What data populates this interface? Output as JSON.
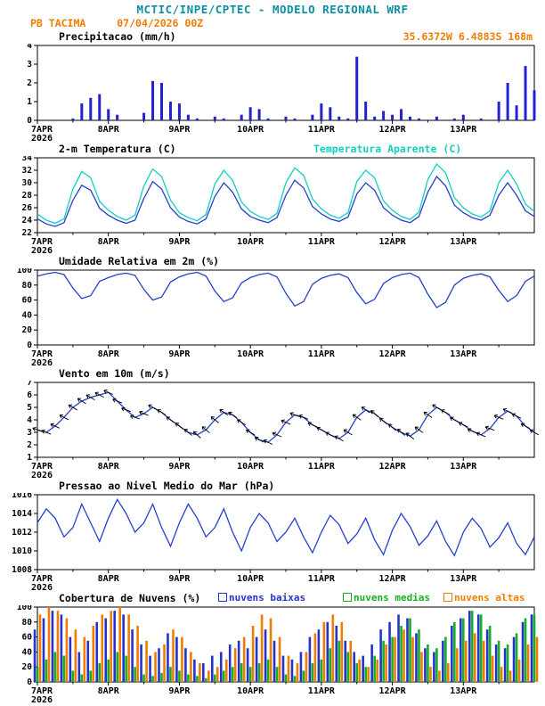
{
  "colors": {
    "header": "#0d8fa3",
    "accent": "#f07d00",
    "axis": "#000000"
  },
  "header": {
    "line1": "MCTIC/INPE/CPTEC - MODELO REGIONAL WRF",
    "station": "PB TACIMA",
    "run": "07/04/2026 00Z",
    "coords": "35.6372W 6.4883S 168m"
  },
  "x_axis": {
    "tick_labels": [
      "7APR",
      "8APR",
      "9APR",
      "10APR",
      "11APR",
      "12APR",
      "13APR"
    ],
    "year": "2026",
    "hours_total": 168,
    "step_hours": 3
  },
  "chart_data": [
    {
      "id": "precipitation",
      "type": "bar",
      "title": "Precipitacao (mm/h)",
      "ylim": [
        0,
        4
      ],
      "yticks": [
        0,
        1,
        2,
        3,
        4
      ],
      "series": [
        {
          "name": "precipitacao",
          "color": "#2222d0",
          "values": [
            0,
            0,
            0,
            0,
            0.1,
            0.9,
            1.2,
            1.4,
            0.6,
            0.3,
            0,
            0,
            0.4,
            2.1,
            2.0,
            1.0,
            0.9,
            0.3,
            0.1,
            0,
            0.2,
            0.1,
            0,
            0.3,
            0.7,
            0.6,
            0.1,
            0,
            0.2,
            0.1,
            0,
            0.3,
            0.9,
            0.7,
            0.2,
            0.1,
            3.4,
            1.0,
            0.2,
            0.5,
            0.3,
            0.6,
            0.2,
            0.1,
            0,
            0.2,
            0,
            0.1,
            0.3,
            0,
            0.1,
            0,
            1.0,
            2.0,
            0.8,
            2.9,
            1.6
          ]
        }
      ]
    },
    {
      "id": "temperature",
      "type": "line",
      "title": "2-m Temperatura (C)",
      "title2": "Temperatura Aparente (C)",
      "ylim": [
        22,
        34
      ],
      "yticks": [
        22,
        24,
        26,
        28,
        30,
        32,
        34
      ],
      "series": [
        {
          "name": "2-m Temperatura",
          "color": "#2440cc",
          "values": [
            24.2,
            23.4,
            23.0,
            23.6,
            27.2,
            29.6,
            28.8,
            25.9,
            24.8,
            24.0,
            23.5,
            24.0,
            27.5,
            30.2,
            29.0,
            26.0,
            24.5,
            23.8,
            23.4,
            24.2,
            27.8,
            30.0,
            28.5,
            25.8,
            24.6,
            24.0,
            23.6,
            24.4,
            28.0,
            30.4,
            29.2,
            26.2,
            25.0,
            24.2,
            23.8,
            24.5,
            28.2,
            30.0,
            28.8,
            26.0,
            24.8,
            24.0,
            23.6,
            24.6,
            28.5,
            31.0,
            29.5,
            26.4,
            25.2,
            24.4,
            24.0,
            24.8,
            28.0,
            30.0,
            28.0,
            25.5,
            24.6
          ]
        },
        {
          "name": "Temperatura Aparente",
          "color": "#12cfbf",
          "values": [
            25.0,
            24.0,
            23.5,
            24.2,
            29.0,
            31.8,
            30.8,
            27.0,
            25.6,
            24.6,
            24.0,
            24.8,
            29.5,
            32.2,
            31.0,
            27.2,
            25.2,
            24.4,
            23.9,
            24.9,
            29.8,
            32.0,
            30.4,
            26.9,
            25.4,
            24.6,
            24.1,
            25.1,
            30.0,
            32.4,
            31.2,
            27.4,
            25.8,
            24.8,
            24.3,
            25.2,
            30.2,
            32.0,
            30.8,
            27.1,
            25.6,
            24.6,
            24.1,
            25.3,
            30.5,
            33.0,
            31.6,
            27.6,
            26.0,
            25.0,
            24.5,
            25.5,
            30.0,
            32.0,
            29.8,
            26.6,
            25.4
          ]
        }
      ]
    },
    {
      "id": "humidity",
      "type": "line",
      "title": "Umidade Relativa em 2m (%)",
      "ylim": [
        0,
        100
      ],
      "yticks": [
        0,
        20,
        40,
        60,
        80,
        100
      ],
      "series": [
        {
          "name": "umidade relativa",
          "color": "#2440cc",
          "values": [
            92,
            95,
            97,
            94,
            76,
            62,
            66,
            85,
            90,
            94,
            96,
            93,
            74,
            60,
            64,
            84,
            91,
            95,
            97,
            92,
            72,
            58,
            63,
            83,
            90,
            94,
            96,
            91,
            69,
            52,
            58,
            81,
            89,
            93,
            95,
            90,
            70,
            55,
            61,
            82,
            90,
            94,
            96,
            90,
            68,
            50,
            57,
            80,
            89,
            93,
            95,
            91,
            73,
            58,
            66,
            85,
            92
          ]
        }
      ]
    },
    {
      "id": "wind",
      "type": "line",
      "title": "Vento em 10m (m/s)",
      "ylim": [
        1,
        7
      ],
      "yticks": [
        1,
        2,
        3,
        4,
        5,
        6,
        7
      ],
      "series": [
        {
          "name": "vento 10m",
          "color": "#2440cc",
          "values": [
            3.2,
            3.0,
            3.5,
            4.2,
            5.0,
            5.5,
            5.8,
            6.0,
            6.2,
            5.5,
            4.8,
            4.2,
            4.5,
            5.0,
            4.6,
            4.0,
            3.5,
            3.0,
            2.8,
            3.2,
            4.0,
            4.6,
            4.4,
            3.8,
            3.0,
            2.4,
            2.2,
            2.8,
            3.8,
            4.4,
            4.2,
            3.6,
            3.2,
            2.8,
            2.5,
            3.0,
            4.2,
            4.8,
            4.5,
            3.9,
            3.4,
            3.0,
            2.7,
            3.2,
            4.4,
            5.0,
            4.6,
            4.0,
            3.6,
            3.1,
            2.8,
            3.3,
            4.2,
            4.7,
            4.3,
            3.5,
            3.0
          ]
        }
      ],
      "barbs": {
        "color": "#000000",
        "dir_deg": [
          110,
          112,
          115,
          118,
          120,
          122,
          120,
          118,
          115,
          112,
          110,
          108,
          112,
          118,
          122,
          125,
          128,
          130,
          132,
          130,
          128,
          126,
          124,
          122,
          120,
          118,
          116,
          114,
          112,
          110,
          112,
          114,
          116,
          118,
          120,
          122,
          124,
          126,
          128,
          130,
          132,
          130,
          128,
          126,
          124,
          122,
          120,
          118,
          116,
          114,
          112,
          110,
          112,
          114,
          116,
          118,
          120
        ]
      }
    },
    {
      "id": "pressure",
      "type": "line",
      "title": "Pressao ao Nivel Medio do Mar (hPa)",
      "ylim": [
        1008,
        1016
      ],
      "yticks": [
        1008,
        1010,
        1012,
        1014,
        1016
      ],
      "series": [
        {
          "name": "pressao nivel do mar",
          "color": "#2440cc",
          "values": [
            1013.0,
            1014.5,
            1013.5,
            1011.5,
            1012.5,
            1015.0,
            1013.0,
            1011.0,
            1013.5,
            1015.5,
            1014.0,
            1012.0,
            1013.0,
            1015.0,
            1012.5,
            1010.5,
            1013.0,
            1015.0,
            1013.5,
            1011.5,
            1012.5,
            1014.5,
            1012.0,
            1010.0,
            1012.5,
            1014.0,
            1013.0,
            1011.0,
            1012.0,
            1013.5,
            1011.5,
            1009.8,
            1012.0,
            1013.8,
            1012.8,
            1010.8,
            1011.8,
            1013.5,
            1011.2,
            1009.6,
            1012.2,
            1014.0,
            1012.6,
            1010.6,
            1011.6,
            1013.2,
            1011.0,
            1009.5,
            1012.0,
            1013.5,
            1012.4,
            1010.4,
            1011.4,
            1013.0,
            1010.8,
            1009.6,
            1011.5
          ]
        }
      ]
    },
    {
      "id": "clouds",
      "type": "bar-group",
      "title": "Cobertura de Nuvens (%)",
      "ylim": [
        0,
        100
      ],
      "yticks": [
        0,
        20,
        40,
        60,
        80,
        100
      ],
      "series": [
        {
          "name": "nuvens baixas",
          "color": "#2433cc",
          "values": [
            70,
            85,
            95,
            90,
            60,
            40,
            55,
            80,
            85,
            95,
            90,
            70,
            50,
            35,
            45,
            65,
            60,
            45,
            30,
            25,
            35,
            40,
            50,
            55,
            45,
            60,
            70,
            55,
            35,
            30,
            40,
            60,
            70,
            80,
            75,
            55,
            40,
            35,
            50,
            70,
            80,
            90,
            85,
            65,
            45,
            40,
            55,
            75,
            85,
            95,
            90,
            70,
            50,
            45,
            60,
            80,
            90
          ]
        },
        {
          "name": "nuvens medias",
          "color": "#16b020",
          "values": [
            20,
            30,
            40,
            35,
            15,
            10,
            15,
            25,
            30,
            40,
            35,
            20,
            10,
            8,
            12,
            20,
            15,
            10,
            8,
            5,
            10,
            15,
            20,
            25,
            20,
            25,
            30,
            20,
            10,
            8,
            15,
            25,
            30,
            45,
            55,
            40,
            25,
            20,
            35,
            55,
            60,
            75,
            85,
            70,
            50,
            45,
            60,
            80,
            85,
            95,
            90,
            75,
            55,
            50,
            65,
            85,
            90
          ]
        },
        {
          "name": "nuvens altas",
          "color": "#f07d00",
          "values": [
            90,
            100,
            95,
            85,
            70,
            60,
            75,
            90,
            95,
            100,
            90,
            75,
            55,
            40,
            50,
            70,
            60,
            40,
            25,
            15,
            20,
            30,
            45,
            60,
            75,
            90,
            85,
            60,
            35,
            25,
            40,
            65,
            80,
            90,
            80,
            55,
            30,
            20,
            30,
            50,
            60,
            70,
            60,
            40,
            20,
            15,
            25,
            45,
            55,
            65,
            55,
            35,
            20,
            15,
            30,
            50,
            60
          ]
        }
      ]
    }
  ]
}
